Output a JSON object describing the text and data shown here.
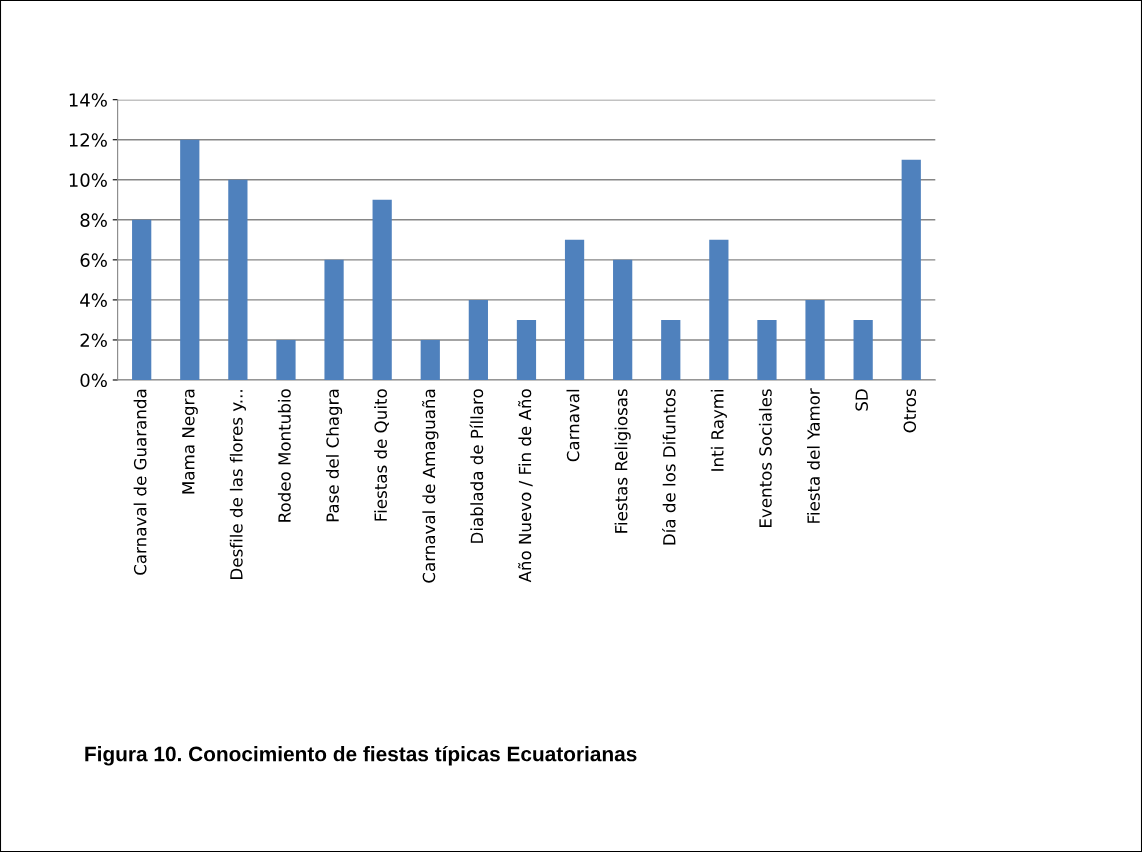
{
  "chart_data": {
    "type": "bar",
    "categories": [
      "Carnaval de Guaranda",
      "Mama Negra",
      "Desfile de las flores y...",
      "Rodeo Montubio",
      "Pase del Chagra",
      "Fiestas de Quito",
      "Carnaval de Amaguaña",
      "Diablada de Píllaro",
      "Año Nuevo / Fin de Año",
      "Carnaval",
      "Fiestas Religiosas",
      "Día de los Difuntos",
      "Inti Raymi",
      "Eventos Sociales",
      "Fiesta del Yamor",
      "SD",
      "Otros"
    ],
    "values": [
      8,
      12,
      10,
      2,
      6,
      9,
      2,
      4,
      3,
      7,
      6,
      3,
      7,
      3,
      4,
      3,
      11
    ],
    "color": "#4f81bd",
    "ylim": [
      0,
      14
    ],
    "yticks": [
      {
        "value": 0,
        "label": "0%"
      },
      {
        "value": 2,
        "label": "2%"
      },
      {
        "value": 4,
        "label": "4%"
      },
      {
        "value": 6,
        "label": "6%"
      },
      {
        "value": 8,
        "label": "8%"
      },
      {
        "value": 10,
        "label": "10%"
      },
      {
        "value": 12,
        "label": "12%"
      },
      {
        "value": 14,
        "label": "14%"
      }
    ],
    "grid": "y",
    "annotations": [
      "Figura 10. Conocimiento de fiestas típicas Ecuatorianas"
    ]
  }
}
